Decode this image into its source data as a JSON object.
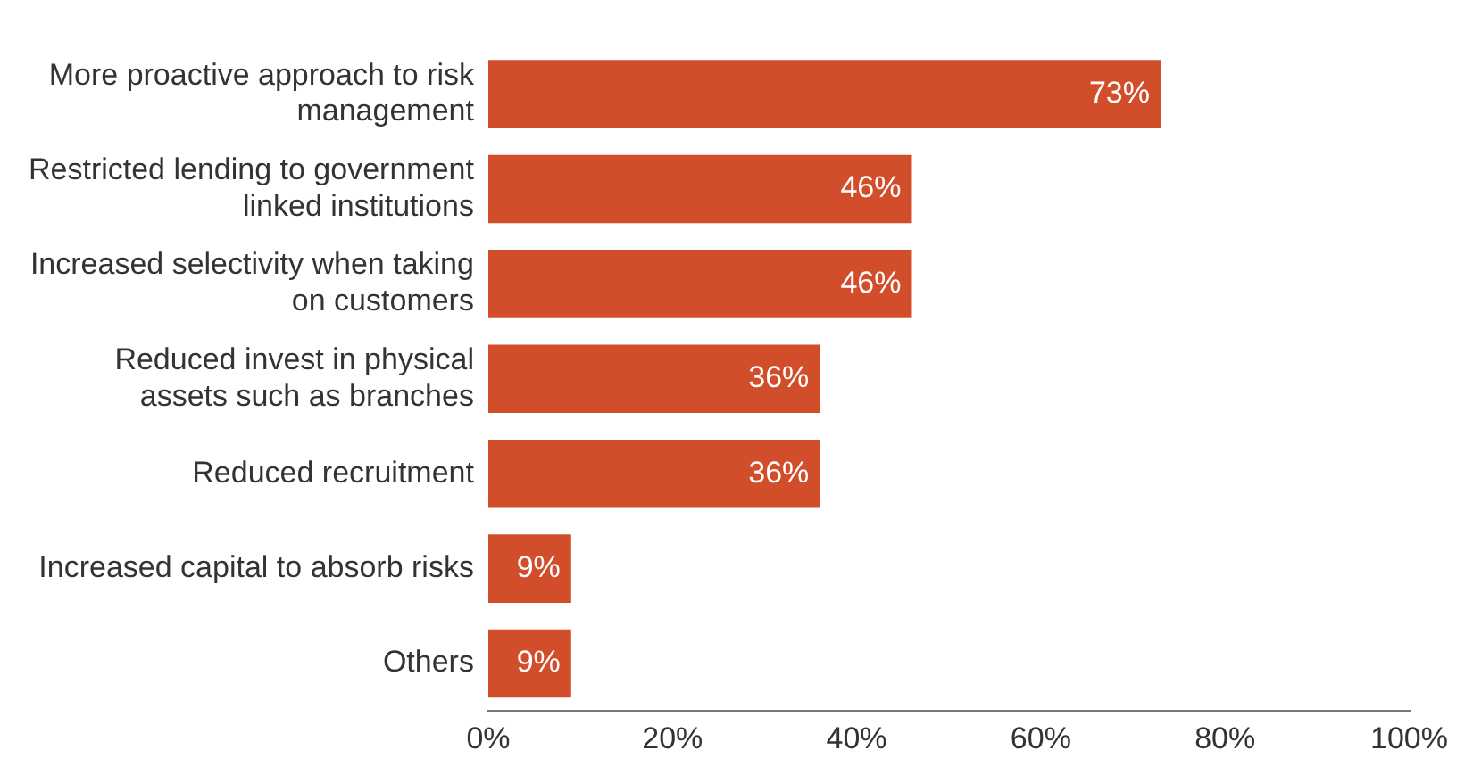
{
  "chart_data": {
    "type": "bar",
    "orientation": "horizontal",
    "categories": [
      "More proactive approach to risk management",
      "Restricted lending to government linked institutions",
      "Increased selectivity when taking on customers",
      "Reduced invest in physical assets such as branches",
      "Reduced recruitment",
      "Increased capital to absorb risks",
      "Others"
    ],
    "values": [
      73,
      46,
      46,
      36,
      36,
      9,
      9
    ],
    "value_labels": [
      "73%",
      "46%",
      "46%",
      "36%",
      "36%",
      "9%",
      "9%"
    ],
    "color": "#d24e2a",
    "xlim": [
      0,
      100
    ],
    "xticks": [
      {
        "value": 0,
        "label": "0%"
      },
      {
        "value": 20,
        "label": "20%"
      },
      {
        "value": 40,
        "label": "40%"
      },
      {
        "value": 60,
        "label": "60%"
      },
      {
        "value": 80,
        "label": "80%"
      },
      {
        "value": 100,
        "label": "100%"
      }
    ],
    "grid": false,
    "legend": false
  }
}
